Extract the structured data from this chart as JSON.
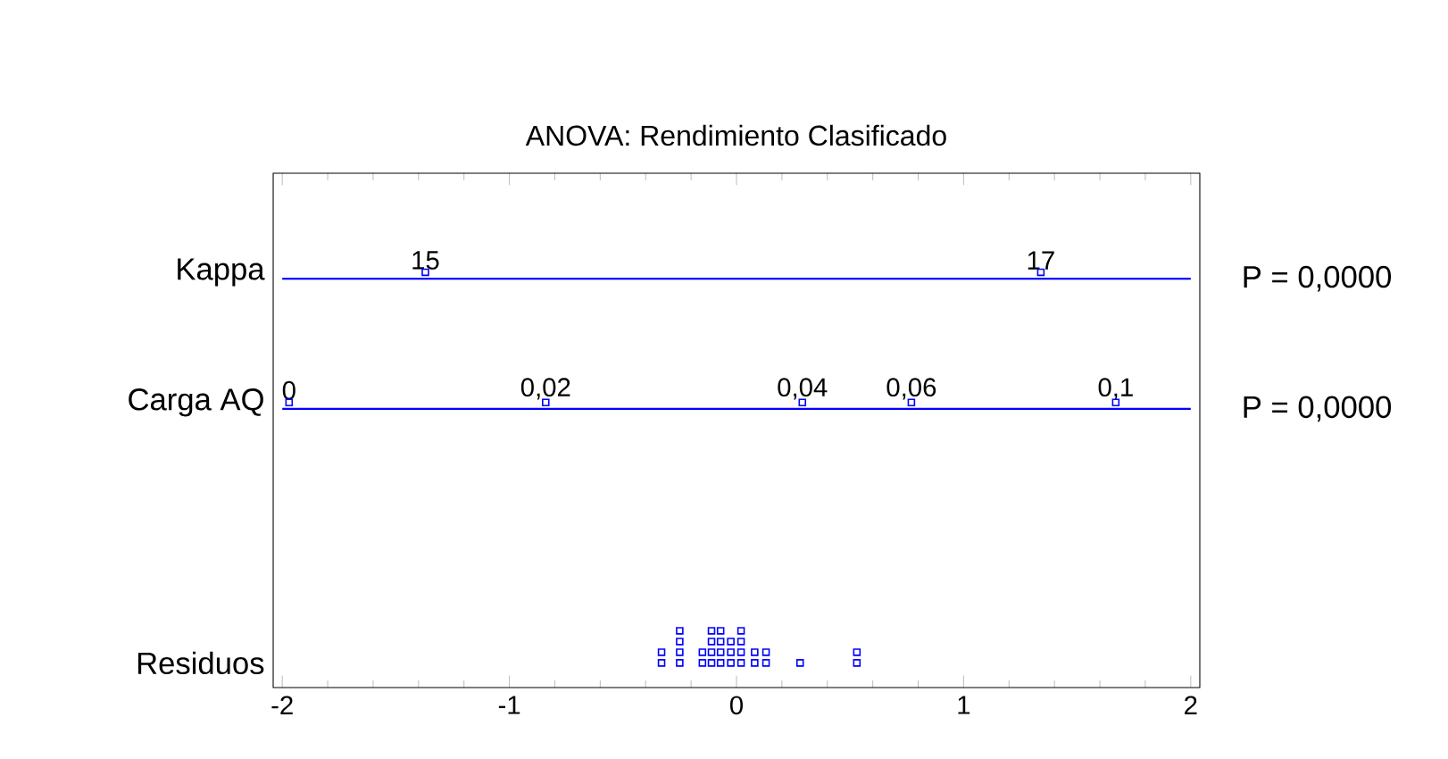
{
  "chart_data": {
    "type": "scatter",
    "orientation": "horizontal",
    "title": "ANOVA: Rendimiento Clasificado",
    "marker": "square",
    "grid": false,
    "categories": [
      "Kappa",
      "Carga AQ",
      null,
      "Residuos"
    ],
    "xlim": [
      -2.04,
      2.04
    ],
    "xticks": [
      -2,
      -1,
      0,
      1,
      2
    ],
    "series": [
      {
        "color": "#0000ff",
        "x": [
          "Kappa",
          "Kappa"
        ],
        "values": [
          -1.37,
          1.34
        ]
      },
      {
        "color": "#0000ff",
        "x": [
          "Carga AQ",
          "Carga AQ",
          "Carga AQ",
          "Carga AQ",
          "Carga AQ"
        ],
        "values": [
          -1.97,
          -0.84,
          0.29,
          0.77,
          1.67
        ]
      },
      {
        "color": "#0000ff",
        "x": [
          "Residuos",
          "Residuos",
          "Residuos",
          "Residuos",
          "Residuos",
          "Residuos",
          "Residuos",
          "Residuos",
          "Residuos",
          "Residuos",
          "Residuos",
          "Residuos",
          "Residuos",
          "Residuos",
          "Residuos",
          "Residuos",
          "Residuos",
          "Residuos",
          "Residuos",
          "Residuos",
          "Residuos",
          "Residuos",
          "Residuos",
          "Residuos",
          "Residuos",
          "Residuos",
          "Residuos",
          "Residuos",
          "Residuos",
          "Residuos"
        ],
        "values": [
          -0.33,
          -0.33,
          -0.25,
          -0.25,
          -0.25,
          -0.25,
          -0.15,
          -0.15,
          -0.11,
          -0.11,
          -0.11,
          -0.11,
          -0.07,
          -0.07,
          -0.07,
          -0.07,
          -0.025,
          -0.025,
          -0.025,
          0.02,
          0.02,
          0.02,
          0.02,
          0.08,
          0.08,
          0.13,
          0.13,
          0.28,
          0.53,
          0.53
        ]
      }
    ],
    "ref_lines": [
      {
        "axis": "y",
        "value": "Kappa",
        "color": "#0000ff"
      },
      {
        "axis": "y",
        "value": "Carga AQ",
        "color": "#0000ff"
      }
    ],
    "annotations": [
      {
        "text": "15",
        "x": -1.37,
        "y": "Kappa"
      },
      {
        "text": "17",
        "x": 1.34,
        "y": "Kappa"
      },
      {
        "text": "0",
        "x": -1.97,
        "y": "Carga AQ"
      },
      {
        "text": "0,02",
        "x": -0.84,
        "y": "Carga AQ"
      },
      {
        "text": "0,04",
        "x": 0.29,
        "y": "Carga AQ"
      },
      {
        "text": "0,06",
        "x": 0.77,
        "y": "Carga AQ"
      },
      {
        "text": "0,1",
        "x": 1.67,
        "y": "Carga AQ"
      },
      "P = 0,0000",
      "P = 0,0000"
    ]
  }
}
